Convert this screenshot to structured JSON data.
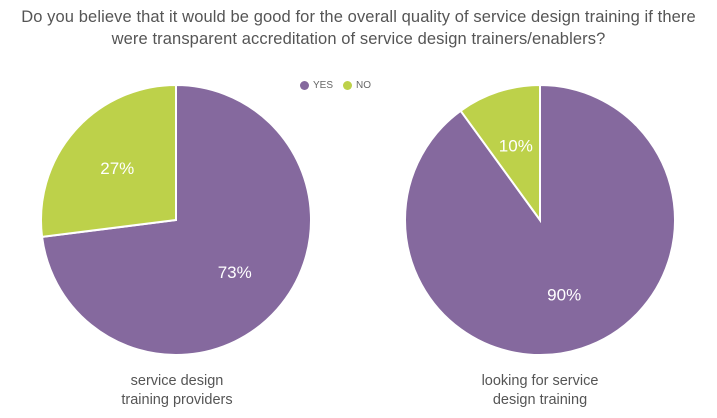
{
  "title": {
    "line1": "Do you believe that it would be good for the overall quality of  service design training if there",
    "line2": "were transparent accreditation of service design trainers/enablers?"
  },
  "legend": [
    {
      "label": "YES",
      "color": "#85699e"
    },
    {
      "label": "NO",
      "color": "#bdd14a"
    }
  ],
  "chart_data": [
    {
      "type": "pie",
      "caption_line1": "service design",
      "caption_line2": "training providers",
      "slices": [
        {
          "label": "YES",
          "value": 73,
          "text": "73%",
          "color": "#85699e"
        },
        {
          "label": "NO",
          "value": 27,
          "text": "27%",
          "color": "#bdd14a"
        }
      ]
    },
    {
      "type": "pie",
      "caption_line1": "looking for service",
      "caption_line2": "design training",
      "slices": [
        {
          "label": "YES",
          "value": 90,
          "text": "90%",
          "color": "#85699e"
        },
        {
          "label": "NO",
          "value": 10,
          "text": "10%",
          "color": "#bdd14a"
        }
      ]
    }
  ]
}
